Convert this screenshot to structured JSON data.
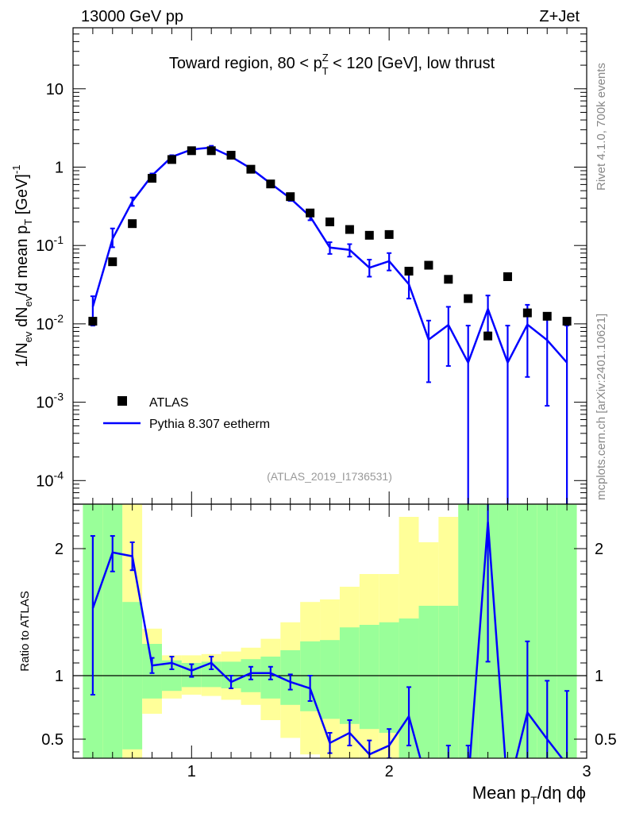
{
  "header": {
    "left": "13000 GeV pp",
    "right": "Z+Jet"
  },
  "side": {
    "rivet": "Rivet 4.1.0,  700k events",
    "mcplots": "mcplots.cern.ch [arXiv:2401.10621]"
  },
  "labels": {
    "title_pre": "Toward region, 80 < p",
    "title_sup": "Z",
    "title_sub": "T",
    "title_post": " < 120 [GeV], low thrust",
    "analysis_id": "(ATLAS_2019_I1736531)",
    "ylabel_main": "1/N_ev dN_ev/d mean p_T [GeV]^-1",
    "ylabel_ratio": "Ratio to ATLAS",
    "xlabel": "Mean p_T/dη dϕ"
  },
  "legend": {
    "data": "ATLAS",
    "mc": "Pythia 8.307 eetherm"
  },
  "colors": {
    "mc": "#0000ff",
    "band_inner": "#99ff99",
    "band_outer": "#ffff99",
    "data": "#000000",
    "side_text": "#888888"
  },
  "chart_data": {
    "type": "line",
    "title": "Toward region, 80 < pT^Z < 120 [GeV], low thrust",
    "xlabel": "Mean pT/dη dϕ",
    "ylabel": "1/Nev dNev/d mean pT [GeV]^-1",
    "xlim": [
      0.4,
      3.0
    ],
    "ylim": [
      5e-05,
      60
    ],
    "yscale": "log",
    "x_ticks": [
      "1",
      "2",
      "3"
    ],
    "y_ticks": [
      {
        "base": "10",
        "exp": "-4",
        "value": 0.0001
      },
      {
        "base": "10",
        "exp": "-3",
        "value": 0.001
      },
      {
        "base": "10",
        "exp": "-2",
        "value": 0.01
      },
      {
        "base": "10",
        "exp": "-1",
        "value": 0.1
      },
      {
        "base": "1",
        "exp": "",
        "value": 1
      },
      {
        "base": "10",
        "exp": "",
        "value": 10
      }
    ],
    "bin_edges": [
      0.45,
      0.55,
      0.65,
      0.75,
      0.85,
      0.95,
      1.05,
      1.15,
      1.25,
      1.35,
      1.45,
      1.55,
      1.65,
      1.75,
      1.85,
      1.95,
      2.05,
      2.15,
      2.25,
      2.35,
      2.45,
      2.55,
      2.65,
      2.75,
      2.85,
      2.95
    ],
    "x": [
      0.5,
      0.6,
      0.7,
      0.8,
      0.9,
      1.0,
      1.1,
      1.2,
      1.3,
      1.4,
      1.5,
      1.6,
      1.7,
      1.8,
      1.9,
      2.0,
      2.1,
      2.2,
      2.3,
      2.4,
      2.5,
      2.6,
      2.7,
      2.8,
      2.9
    ],
    "series": [
      {
        "name": "ATLAS",
        "style": "markers",
        "values": [
          0.0108,
          0.062,
          0.19,
          0.72,
          1.25,
          1.62,
          1.62,
          1.42,
          0.94,
          0.61,
          0.42,
          0.26,
          0.2,
          0.16,
          0.135,
          0.138,
          0.047,
          0.056,
          0.037,
          0.021,
          0.007,
          0.04,
          0.0138,
          0.0125,
          0.0108
        ]
      },
      {
        "name": "Pythia 8.307 eetherm",
        "style": "line",
        "values": [
          0.0165,
          0.122,
          0.365,
          0.78,
          1.35,
          1.68,
          1.78,
          1.36,
          0.96,
          0.62,
          0.4,
          0.235,
          0.094,
          0.088,
          0.052,
          0.063,
          0.032,
          0.0063,
          0.0097,
          0.0032,
          0.0155,
          0.0032,
          0.0098,
          0.0062,
          0.0032
        ],
        "err_up": [
          0.0225,
          0.165,
          0.41,
          0.83,
          1.42,
          1.76,
          1.87,
          1.43,
          1.01,
          0.66,
          0.43,
          0.26,
          0.11,
          0.104,
          0.066,
          0.08,
          0.043,
          0.011,
          0.0165,
          0.0095,
          0.023,
          0.0095,
          0.0175,
          0.012,
          0.0095
        ],
        "err_down": [
          0.0095,
          0.095,
          0.32,
          0.73,
          1.28,
          1.6,
          1.69,
          1.29,
          0.91,
          0.58,
          0.37,
          0.21,
          0.078,
          0.072,
          0.04,
          0.048,
          0.021,
          0.0018,
          0.0029,
          1e-05,
          0.0078,
          1e-05,
          0.0021,
          0.0009,
          1e-05
        ]
      }
    ],
    "ratio": {
      "ylabel": "Ratio to ATLAS",
      "ylim": [
        0.35,
        2.35
      ],
      "y_ticks": [
        "0.5",
        "1",
        "2"
      ],
      "y_tick_values": [
        0.5,
        1,
        2
      ],
      "mc_ratio": [
        1.53,
        1.97,
        1.94,
        1.08,
        1.1,
        1.04,
        1.1,
        0.95,
        1.02,
        1.02,
        0.95,
        0.9,
        0.47,
        0.55,
        0.38,
        0.45,
        0.68,
        0.11,
        0.26,
        0.15,
        2.21,
        0.08,
        0.71,
        0.5,
        0.3
      ],
      "mc_ratio_up": [
        2.1,
        2.1,
        2.05,
        1.14,
        1.15,
        1.09,
        1.15,
        1.0,
        1.07,
        1.07,
        1.01,
        1.0,
        0.55,
        0.65,
        0.49,
        0.58,
        0.91,
        0.2,
        0.45,
        0.45,
        3.3,
        0.24,
        1.27,
        0.96,
        0.88
      ],
      "mc_ratio_down": [
        0.85,
        1.82,
        1.83,
        1.02,
        1.05,
        0.99,
        1.05,
        0.9,
        0.97,
        0.97,
        0.89,
        0.8,
        0.39,
        0.45,
        0.3,
        0.35,
        0.45,
        0.03,
        0.08,
        0.001,
        1.11,
        0.001,
        0.15,
        0.07,
        0.001
      ],
      "band_inner_up": [
        2.35,
        2.35,
        1.58,
        1.25,
        1.12,
        1.1,
        1.11,
        1.11,
        1.13,
        1.15,
        1.2,
        1.27,
        1.28,
        1.38,
        1.4,
        1.42,
        1.45,
        1.55,
        1.55,
        2.35,
        2.35,
        2.35,
        2.35,
        2.35,
        2.35
      ],
      "band_inner_down": [
        0.35,
        0.35,
        0.42,
        0.82,
        0.88,
        0.91,
        0.91,
        0.9,
        0.87,
        0.82,
        0.77,
        0.72,
        0.66,
        0.62,
        0.58,
        0.55,
        0.35,
        0.35,
        0.35,
        0.35,
        0.35,
        0.35,
        0.35,
        0.35,
        0.35
      ],
      "band_outer_up": [
        2.35,
        2.35,
        2.35,
        1.37,
        1.16,
        1.16,
        1.17,
        1.19,
        1.22,
        1.29,
        1.42,
        1.58,
        1.6,
        1.7,
        1.8,
        1.8,
        2.25,
        2.05,
        2.25,
        2.35,
        2.35,
        2.35,
        2.35,
        2.35,
        2.35
      ],
      "band_outer_down": [
        0.35,
        0.35,
        0.35,
        0.7,
        0.82,
        0.85,
        0.84,
        0.81,
        0.77,
        0.65,
        0.51,
        0.38,
        0.35,
        0.35,
        0.35,
        0.35,
        0.35,
        0.35,
        0.35,
        0.35,
        0.35,
        0.35,
        0.35,
        0.35,
        0.35
      ]
    }
  }
}
